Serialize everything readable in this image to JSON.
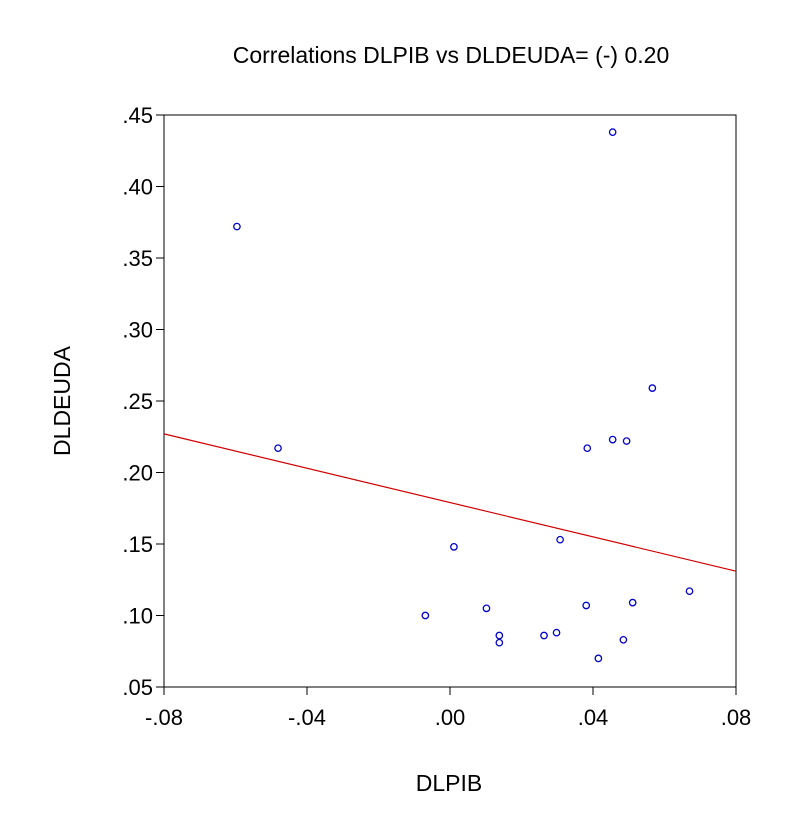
{
  "chart_data": {
    "type": "scatter",
    "title": "Correlations DLPIB vs DLDEUDA= (-) 0.20",
    "xlabel": "DLPIB",
    "ylabel": "DLDEUDA",
    "xlim": [
      -0.08,
      0.08
    ],
    "ylim": [
      0.05,
      0.45
    ],
    "x_ticks": [
      {
        "value": -0.08,
        "label": "-.08"
      },
      {
        "value": -0.04,
        "label": "-.04"
      },
      {
        "value": 0.0,
        "label": ".00"
      },
      {
        "value": 0.04,
        "label": ".04"
      },
      {
        "value": 0.08,
        "label": ".08"
      }
    ],
    "y_ticks": [
      {
        "value": 0.05,
        "label": ".05"
      },
      {
        "value": 0.1,
        "label": ".10"
      },
      {
        "value": 0.15,
        "label": ".15"
      },
      {
        "value": 0.2,
        "label": ".20"
      },
      {
        "value": 0.25,
        "label": ".25"
      },
      {
        "value": 0.3,
        "label": ".30"
      },
      {
        "value": 0.35,
        "label": ".35"
      },
      {
        "value": 0.4,
        "label": ".40"
      },
      {
        "value": 0.45,
        "label": ".45"
      }
    ],
    "points": [
      {
        "x": -0.0596,
        "y": 0.372
      },
      {
        "x": -0.0481,
        "y": 0.217
      },
      {
        "x": -0.0069,
        "y": 0.1
      },
      {
        "x": 0.0011,
        "y": 0.148
      },
      {
        "x": 0.0102,
        "y": 0.105
      },
      {
        "x": 0.0138,
        "y": 0.086
      },
      {
        "x": 0.0138,
        "y": 0.081
      },
      {
        "x": 0.0263,
        "y": 0.086
      },
      {
        "x": 0.0298,
        "y": 0.088
      },
      {
        "x": 0.0308,
        "y": 0.153
      },
      {
        "x": 0.0381,
        "y": 0.107
      },
      {
        "x": 0.0384,
        "y": 0.217
      },
      {
        "x": 0.0415,
        "y": 0.07
      },
      {
        "x": 0.0455,
        "y": 0.438
      },
      {
        "x": 0.0455,
        "y": 0.223
      },
      {
        "x": 0.0485,
        "y": 0.083
      },
      {
        "x": 0.0494,
        "y": 0.222
      },
      {
        "x": 0.0511,
        "y": 0.109
      },
      {
        "x": 0.0566,
        "y": 0.259
      },
      {
        "x": 0.067,
        "y": 0.117
      }
    ],
    "fit_line": {
      "x": [
        -0.08,
        0.08
      ],
      "y": [
        0.227,
        0.131
      ]
    },
    "grid": false,
    "colors": {
      "points": "#0000c0",
      "fit_line": "#d00000",
      "frame": "#000000"
    }
  }
}
